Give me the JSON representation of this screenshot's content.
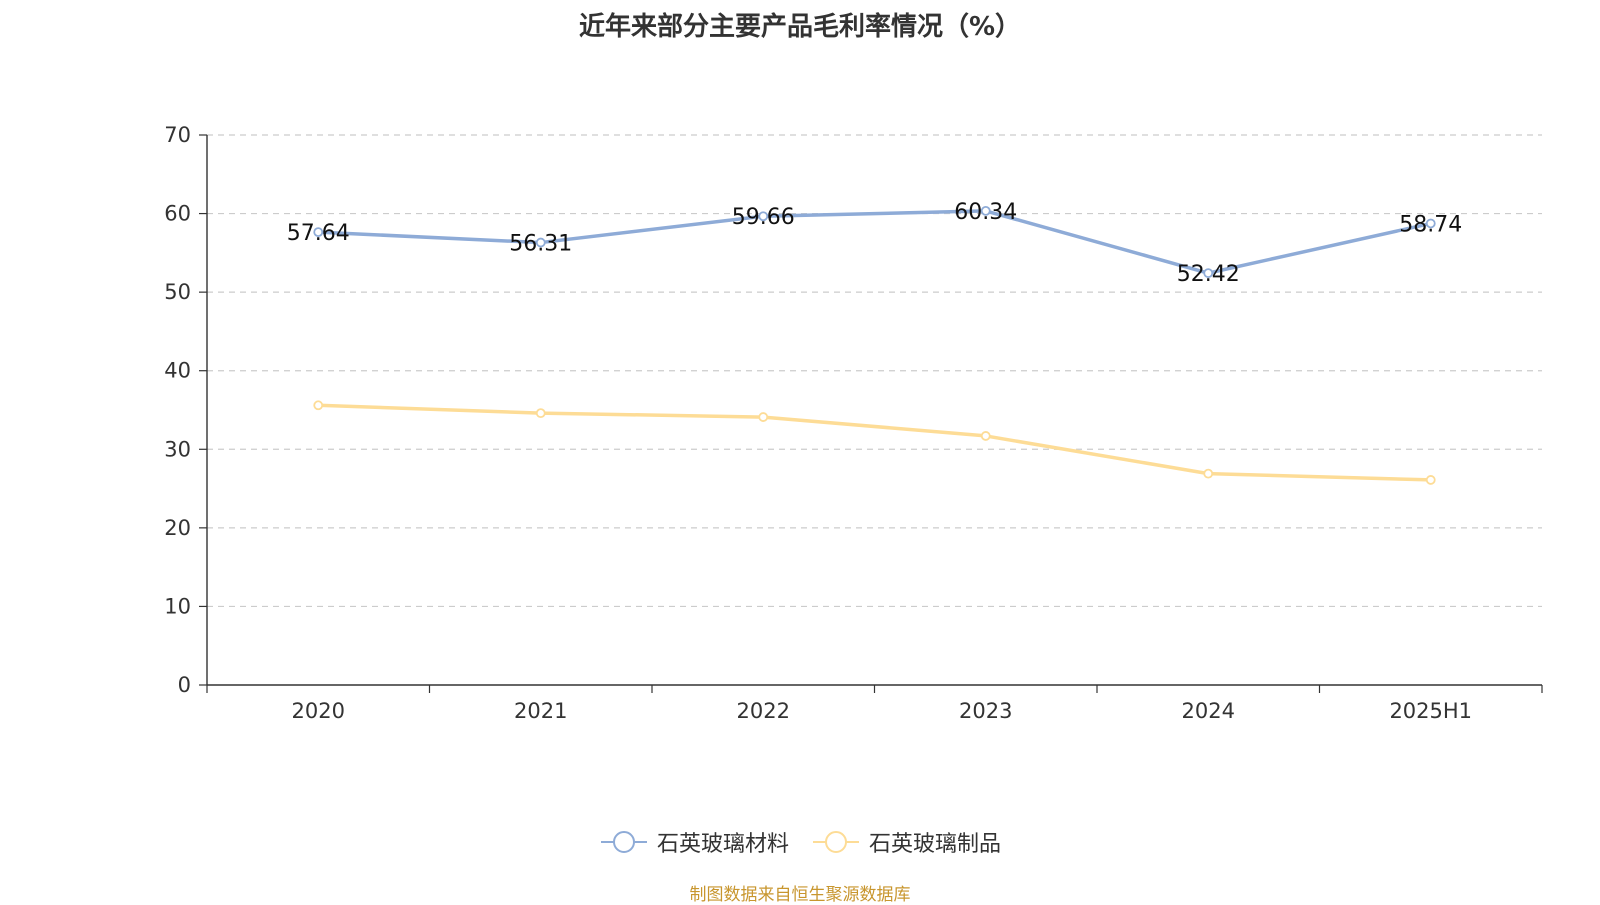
{
  "chart_data": {
    "type": "line",
    "title": "近年来部分主要产品毛利率情况（%）",
    "categories": [
      "2020",
      "2021",
      "2022",
      "2023",
      "2024",
      "2025H1"
    ],
    "ylim": [
      0,
      70
    ],
    "yticks": [
      0,
      10,
      20,
      30,
      40,
      50,
      60,
      70
    ],
    "grid": true,
    "legend_position": "bottom",
    "series": [
      {
        "name": "石英玻璃材料",
        "color": "#8eabd7",
        "values": [
          57.64,
          56.31,
          59.66,
          60.34,
          52.42,
          58.74
        ],
        "labels": [
          "57.64",
          "56.31",
          "59.66",
          "60.34",
          "52.42",
          "58.74"
        ]
      },
      {
        "name": "石英玻璃制品",
        "color": "#fddc96",
        "values": [
          35.6,
          34.6,
          34.1,
          31.7,
          26.9,
          26.1
        ]
      }
    ]
  },
  "source": "制图数据来自恒生聚源数据库"
}
